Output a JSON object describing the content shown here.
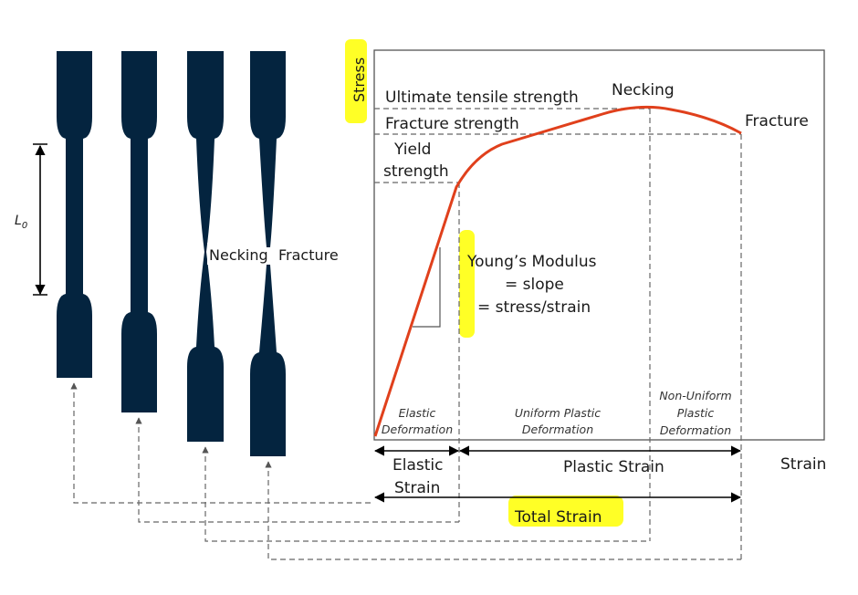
{
  "colors": {
    "specimen": "#04243f",
    "curve": "#e0401c",
    "highlight": "#ffff00",
    "dashed": "#666666"
  },
  "specimens": {
    "gauge_length_label": "L",
    "gauge_length_subscript": "0",
    "necking_label": "Necking",
    "fracture_label": "Fracture"
  },
  "chart": {
    "y_axis_label": "Stress",
    "x_axis_label": "Strain",
    "stress_levels": {
      "ultimate_tensile_strength": "Ultimate tensile strength",
      "fracture_strength": "Fracture strength",
      "yield_line1": "Yield",
      "yield_line2": "strength"
    },
    "points": {
      "necking": "Necking",
      "fracture": "Fracture"
    },
    "youngs_modulus": {
      "line1": "Young’s Modulus",
      "line2": "= slope",
      "line3": "= stress/strain"
    },
    "regions": {
      "elastic_line1": "Elastic",
      "elastic_line2": "Deformation",
      "uniform_line1": "Uniform Plastic",
      "uniform_line2": "Deformation",
      "nonuniform_line1": "Non-Uniform",
      "nonuniform_line2": "Plastic",
      "nonuniform_line3": "Deformation"
    },
    "strains": {
      "elastic_line1": "Elastic",
      "elastic_line2": "Strain",
      "plastic": "Plastic Strain",
      "total": "Total Strain"
    }
  }
}
